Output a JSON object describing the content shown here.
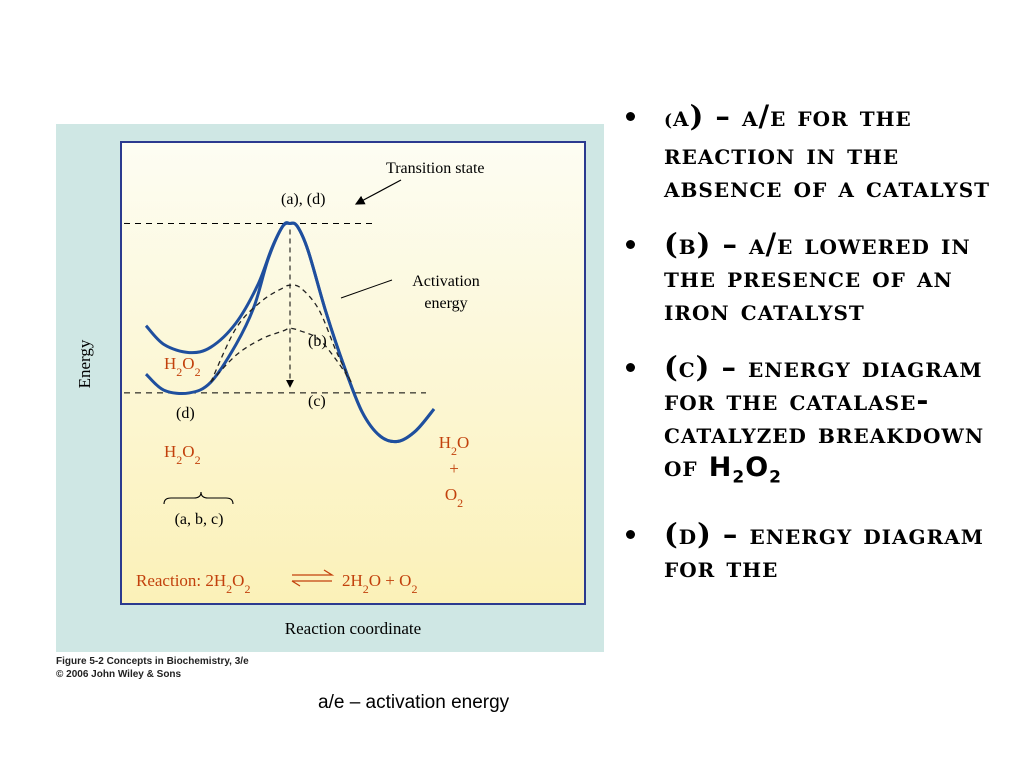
{
  "chart_data": {
    "type": "line",
    "xlabel": "Reaction coordinate",
    "ylabel": "Energy",
    "xlim": [
      0,
      100
    ],
    "ylim": [
      0,
      100
    ],
    "levels": {
      "top": 95,
      "start": 32
    },
    "series": [
      {
        "id": "a",
        "values": [
          [
            0,
            57
          ],
          [
            5,
            50
          ],
          [
            12,
            47
          ],
          [
            18,
            49
          ],
          [
            25,
            58
          ],
          [
            31,
            72
          ],
          [
            35,
            86
          ],
          [
            38,
            94
          ],
          [
            40,
            95
          ],
          [
            42,
            94
          ],
          [
            45,
            85
          ],
          [
            50,
            62
          ],
          [
            55,
            42
          ],
          [
            60,
            25
          ],
          [
            65,
            16
          ],
          [
            70,
            14
          ],
          [
            75,
            18
          ],
          [
            80,
            26
          ]
        ],
        "color": "#1f4f9e",
        "style": "solid"
      },
      {
        "id": "d",
        "values": [
          [
            0,
            39
          ],
          [
            5,
            33
          ],
          [
            12,
            32
          ],
          [
            18,
            36
          ],
          [
            25,
            50
          ],
          [
            30,
            64
          ],
          [
            34,
            82
          ],
          [
            38,
            94
          ],
          [
            40,
            95
          ],
          [
            42,
            94
          ],
          [
            45,
            85
          ],
          [
            50,
            62
          ],
          [
            55,
            42
          ],
          [
            60,
            25
          ],
          [
            65,
            16
          ],
          [
            70,
            14
          ],
          [
            75,
            18
          ],
          [
            80,
            26
          ]
        ],
        "color": "#1f4f9e",
        "style": "solid"
      },
      {
        "id": "b",
        "values": [
          [
            18,
            36
          ],
          [
            25,
            56
          ],
          [
            32,
            66
          ],
          [
            38,
            71
          ],
          [
            40,
            72
          ],
          [
            43,
            71
          ],
          [
            48,
            63
          ],
          [
            53,
            47
          ],
          [
            57,
            36
          ]
        ],
        "color": "#222222",
        "style": "dashed"
      },
      {
        "id": "c",
        "values": [
          [
            18,
            36
          ],
          [
            25,
            46
          ],
          [
            32,
            52
          ],
          [
            38,
            55
          ],
          [
            40,
            56
          ],
          [
            43,
            55
          ],
          [
            48,
            52
          ],
          [
            53,
            44
          ],
          [
            57,
            36
          ]
        ],
        "color": "#222222",
        "style": "dashed"
      }
    ],
    "annotations": {
      "transition_state": "Transition state",
      "peak_label": "(a), (d)",
      "activation_energy": [
        "Activation",
        "energy"
      ],
      "label_b": "(b)",
      "label_c": "(c)",
      "label_d": "(d)",
      "reactant_upper": {
        "main1": "H",
        "sub1": "2",
        "main2": "O",
        "sub2": "2"
      },
      "reactant_lower": {
        "main1": "H",
        "sub1": "2",
        "main2": "O",
        "sub2": "2"
      },
      "product": {
        "line1_main": "H",
        "line1_sub": "2",
        "line1_end": "O",
        "plus": "+",
        "line3_main": "O",
        "line3_sub": "2"
      },
      "brace_label": "(a, b, c)",
      "reaction": {
        "prefix": "Reaction: 2H",
        "s1": "2",
        "o": "O",
        "s2": "2",
        "product": "2H",
        "s3": "2",
        "o2": "O  +  O",
        "s4": "2"
      }
    }
  },
  "caption": {
    "line1": "Figure 5-2  Concepts in Biochemistry, 3/e",
    "line2": "© 2006 John Wiley & Sons"
  },
  "legend_note": "a/e – activation energy",
  "bullets": [
    {
      "lead": "(",
      "text": "a) – a/e for the reaction in the absence of a catalyst"
    },
    {
      "lead": "",
      "text": "(b) – a/e lowered in the presence of an iron catalyst"
    },
    {
      "lead": "",
      "text": "(c) – energy diagram for the catalase-catalyzed breakdown of",
      "formula": {
        "m1": "H",
        "s1": "2",
        "m2": "O",
        "s2": "2"
      }
    },
    {
      "lead": "",
      "text": "(d) – energy diagram for the"
    }
  ],
  "colors": {
    "panel": "#cfe7e4",
    "plot_top": "#fdfdf3",
    "plot_bottom": "#fbf1b8",
    "curve": "#1f4f9e",
    "chem_label": "#c2410c",
    "frame": "#2b3a8f"
  }
}
